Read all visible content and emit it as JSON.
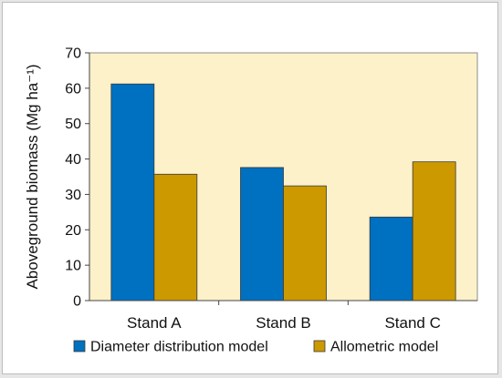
{
  "chart_data": {
    "type": "bar",
    "categories": [
      "Stand A",
      "Stand B",
      "Stand C"
    ],
    "series": [
      {
        "name": "Diameter distribution model",
        "values": [
          61.2,
          37.6,
          23.6
        ],
        "color": "#0070c0"
      },
      {
        "name": "Allometric model",
        "values": [
          35.7,
          32.4,
          39.2
        ],
        "color": "#cc9900"
      }
    ],
    "title": "",
    "xlabel": "",
    "ylabel": "Aboveground biomass (Mg ha⁻¹)",
    "ylim": [
      0,
      70
    ],
    "yticks": [
      0,
      10,
      20,
      30,
      40,
      50,
      60,
      70
    ],
    "grid": false,
    "legend_position": "bottom",
    "plot_background": "#fcf1c9"
  }
}
